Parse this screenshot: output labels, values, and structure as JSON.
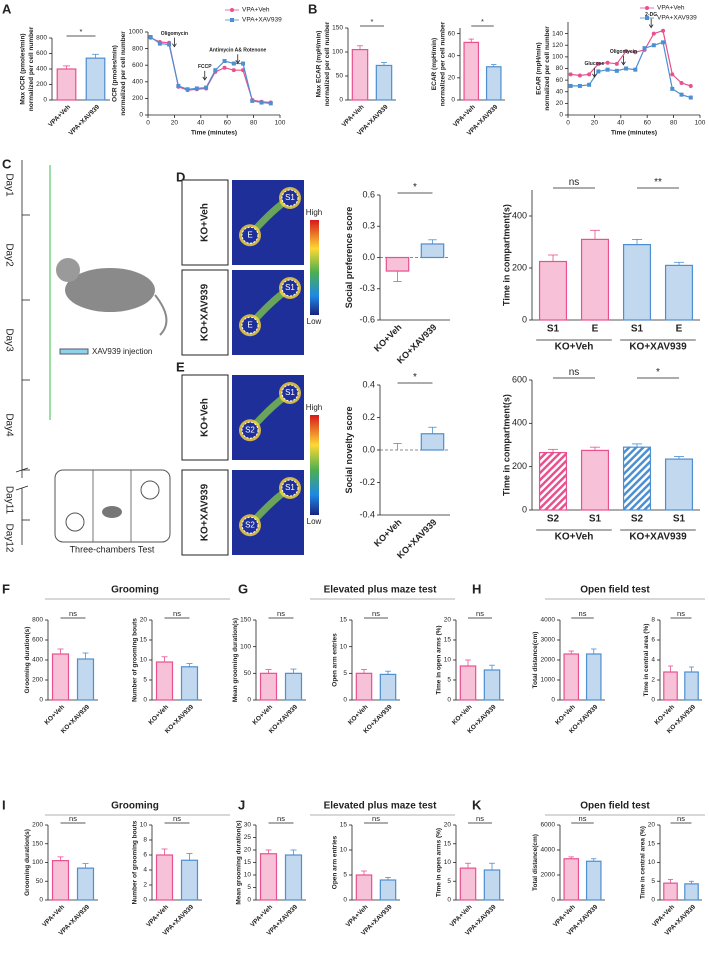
{
  "panel_labels": [
    "A",
    "B",
    "C",
    "D",
    "E",
    "F",
    "G",
    "H",
    "I",
    "J",
    "K"
  ],
  "section_titles": [
    "Grooming",
    "Elevated plus maze test",
    "Open field test",
    "Grooming",
    "Elevated plus maze test",
    "Open field test"
  ],
  "timeline": {
    "days": [
      "Day1",
      "Day2",
      "Day3",
      "Day4",
      "Day11",
      "Day12"
    ],
    "injection": "XAV939 injection",
    "test": "Three-chambers Test"
  },
  "heatmaps": [
    {
      "groups": [
        {
          "label": "KO+Veh",
          "zones": [
            "E",
            "S1"
          ]
        },
        {
          "label": "KO+XAV939",
          "zones": [
            "E",
            "S1"
          ]
        }
      ],
      "scale": [
        "High",
        "Low"
      ]
    },
    {
      "groups": [
        {
          "label": "KO+Veh",
          "zones": [
            "S2",
            "S1"
          ]
        },
        {
          "label": "KO+XAV939",
          "zones": [
            "S2",
            "S1"
          ]
        }
      ],
      "scale": [
        "High",
        "Low"
      ]
    }
  ],
  "chart_data": [
    {
      "type": "bar",
      "ylabel": [
        "Max OCR (pmoles/min)",
        "normalized per cell number"
      ],
      "categories": [
        "VPA+Veh",
        "VPA+XAV939"
      ],
      "values": [
        400,
        540
      ],
      "errors": [
        40,
        50
      ],
      "colors": [
        "#e8508f",
        "#4d8fd1"
      ],
      "ylim": [
        0,
        800
      ],
      "yticks": [
        0,
        200,
        400,
        600,
        800
      ],
      "significance": [
        "*"
      ]
    },
    {
      "type": "line",
      "ylabel": [
        "OCR (pmoles/min)",
        "normalized per cell number"
      ],
      "xlabel": "Time (minutes)",
      "x": [
        2,
        9,
        16,
        23,
        30,
        37,
        44,
        51,
        58,
        65,
        72,
        79,
        86,
        93
      ],
      "series": [
        {
          "name": "VPA+Veh",
          "color": "#e8508f",
          "values": [
            930,
            880,
            870,
            340,
            300,
            310,
            320,
            520,
            570,
            540,
            540,
            180,
            160,
            150
          ]
        },
        {
          "name": "VPA+XAV939",
          "color": "#4d8fd1",
          "values": [
            940,
            860,
            850,
            350,
            310,
            320,
            330,
            540,
            650,
            620,
            620,
            170,
            150,
            140
          ]
        }
      ],
      "xlim": [
        0,
        100
      ],
      "xticks": [
        0,
        20,
        40,
        60,
        80,
        100
      ],
      "ylim": [
        0,
        1000
      ],
      "yticks": [
        0,
        200,
        400,
        600,
        800,
        1000
      ],
      "annotations": [
        "Oligomycin",
        "FCCP",
        "Antimycin A& Rotenone"
      ]
    },
    {
      "type": "bar",
      "ylabel": [
        "Max ECAR (mpH/min)",
        "normalized per cell number"
      ],
      "categories": [
        "VPA+Veh",
        "VPA+XAV939"
      ],
      "values": [
        105,
        72
      ],
      "errors": [
        8,
        6
      ],
      "colors": [
        "#e8508f",
        "#4d8fd1"
      ],
      "ylim": [
        0,
        150
      ],
      "yticks": [
        0,
        50,
        100,
        150
      ],
      "significance": [
        "*"
      ]
    },
    {
      "type": "bar",
      "ylabel": [
        "ECAR (mpH/min)",
        "normalized per cell number"
      ],
      "categories": [
        "VPA+Veh",
        "VPA+XAV939"
      ],
      "values": [
        52,
        30
      ],
      "errors": [
        3,
        2
      ],
      "colors": [
        "#e8508f",
        "#4d8fd1"
      ],
      "ylim": [
        0,
        65
      ],
      "yticks": [
        0,
        20,
        40,
        60
      ],
      "significance": [
        "*"
      ]
    },
    {
      "type": "line",
      "ylabel": [
        "ECAR (mpH/min)",
        "normalized per cell number"
      ],
      "xlabel": "Time (minutes)",
      "x": [
        2,
        9,
        16,
        23,
        30,
        37,
        44,
        51,
        58,
        65,
        72,
        79,
        86,
        93
      ],
      "series": [
        {
          "name": "VPA+Veh",
          "color": "#e8508f",
          "values": [
            70,
            68,
            70,
            88,
            90,
            88,
            110,
            108,
            112,
            140,
            145,
            70,
            55,
            50
          ]
        },
        {
          "name": "VPA+XAV939",
          "color": "#4d8fd1",
          "values": [
            50,
            50,
            52,
            75,
            78,
            76,
            80,
            78,
            115,
            120,
            125,
            45,
            35,
            30
          ]
        }
      ],
      "xlim": [
        0,
        100
      ],
      "xticks": [
        0,
        20,
        40,
        60,
        80,
        100
      ],
      "ylim": [
        0,
        160
      ],
      "yticks": [
        0,
        20,
        40,
        60,
        80,
        100,
        120,
        140
      ],
      "annotations": [
        "Glucose",
        "Oligomycin",
        "2-DG"
      ]
    },
    {
      "type": "bar",
      "ylabel": [
        "Social preference score"
      ],
      "categories": [
        "KO+Veh",
        "KO+XAV939"
      ],
      "values": [
        -0.13,
        0.13
      ],
      "errors": [
        0.1,
        0.04
      ],
      "colors": [
        "#e8508f",
        "#4d8fd1"
      ],
      "ylim": [
        -0.6,
        0.6
      ],
      "yticks": [
        -0.6,
        -0.3,
        {
          "value": 0,
          "label": "0.0"
        },
        0.3,
        0.6
      ],
      "significance": [
        "*"
      ]
    },
    {
      "type": "bar",
      "ylabel": [
        "Time in compartment(s)"
      ],
      "categories": [
        "S1",
        "E",
        "S1",
        "E"
      ],
      "groups": [
        "KO+Veh",
        "KO+XAV939"
      ],
      "values": [
        225,
        310,
        290,
        210
      ],
      "errors": [
        25,
        35,
        20,
        12
      ],
      "colors": [
        "#e8508f",
        "#e8508f",
        "#4d8fd1",
        "#4d8fd1"
      ],
      "ylim": [
        0,
        500
      ],
      "yticks": [
        0,
        200,
        400
      ],
      "significance": [
        "ns",
        "**"
      ]
    },
    {
      "type": "bar",
      "ylabel": [
        "Social novelty score"
      ],
      "categories": [
        "KO+Veh",
        "KO+XAV939"
      ],
      "values": [
        0,
        0.1
      ],
      "errors": [
        0.04,
        0.04
      ],
      "colors": [
        "#e8508f",
        "#4d8fd1"
      ],
      "ylim": [
        -0.4,
        0.4
      ],
      "yticks": [
        -0.4,
        -0.2,
        {
          "value": 0,
          "label": "0.0"
        },
        0.2,
        0.4
      ],
      "significance": [
        "*"
      ]
    },
    {
      "type": "bar",
      "ylabel": [
        "Time in compartment(s)"
      ],
      "categories": [
        "S2",
        "S1",
        "S2",
        "S1"
      ],
      "groups": [
        "KO+Veh",
        "KO+XAV939"
      ],
      "values": [
        265,
        275,
        290,
        235
      ],
      "errors": [
        15,
        15,
        15,
        12
      ],
      "colors": [
        "#e8508f",
        "#e8508f",
        "#4d8fd1",
        "#4d8fd1"
      ],
      "hatch": [
        true,
        false,
        true,
        false
      ],
      "ylim": [
        0,
        600
      ],
      "yticks": [
        0,
        200,
        400,
        600
      ],
      "significance": [
        "ns",
        "*"
      ]
    },
    {
      "type": "bar",
      "ylabel": [
        "Grooming duration(s)"
      ],
      "categories": [
        "KO+Veh",
        "KO+XAV939"
      ],
      "values": [
        460,
        410
      ],
      "errors": [
        50,
        60
      ],
      "colors": [
        "#e8508f",
        "#4d8fd1"
      ],
      "ylim": [
        0,
        800
      ],
      "yticks": [
        0,
        200,
        400,
        600,
        800
      ],
      "significance": [
        "ns"
      ]
    },
    {
      "type": "bar",
      "ylabel": [
        "Number of grooming bouts"
      ],
      "categories": [
        "KO+Veh",
        "KO+XAV939"
      ],
      "values": [
        9.5,
        8.3
      ],
      "errors": [
        1.3,
        0.8
      ],
      "colors": [
        "#e8508f",
        "#4d8fd1"
      ],
      "ylim": [
        0,
        20
      ],
      "yticks": [
        0,
        5,
        10,
        15,
        20
      ],
      "significance": [
        "ns"
      ]
    },
    {
      "type": "bar",
      "ylabel": [
        "Mean grooming duration(s)"
      ],
      "categories": [
        "KO+Veh",
        "KO+XAV939"
      ],
      "values": [
        50,
        50
      ],
      "errors": [
        7,
        8
      ],
      "colors": [
        "#e8508f",
        "#4d8fd1"
      ],
      "ylim": [
        0,
        150
      ],
      "yticks": [
        0,
        50,
        100,
        150
      ],
      "significance": [
        "ns"
      ]
    },
    {
      "type": "bar",
      "ylabel": [
        "Open arm entries"
      ],
      "categories": [
        "KO+Veh",
        "KO+XAV939"
      ],
      "values": [
        5,
        4.8
      ],
      "errors": [
        0.7,
        0.6
      ],
      "colors": [
        "#e8508f",
        "#4d8fd1"
      ],
      "ylim": [
        0,
        15
      ],
      "yticks": [
        0,
        5,
        10,
        15
      ],
      "significance": [
        "ns"
      ]
    },
    {
      "type": "bar",
      "ylabel": [
        "Time in open arms (%)"
      ],
      "categories": [
        "KO+Veh",
        "KO+XAV939"
      ],
      "values": [
        8.5,
        7.5
      ],
      "errors": [
        1.5,
        1.2
      ],
      "colors": [
        "#e8508f",
        "#4d8fd1"
      ],
      "ylim": [
        0,
        20
      ],
      "yticks": [
        0,
        5,
        10,
        15,
        20
      ],
      "significance": [
        "ns"
      ]
    },
    {
      "type": "bar",
      "ylabel": [
        "Total distance(cm)"
      ],
      "categories": [
        "KO+Veh",
        "KO+XAV939"
      ],
      "values": [
        2300,
        2300
      ],
      "errors": [
        150,
        250
      ],
      "colors": [
        "#e8508f",
        "#4d8fd1"
      ],
      "ylim": [
        0,
        4000
      ],
      "yticks": [
        0,
        1000,
        2000,
        3000,
        4000
      ],
      "significance": [
        "ns"
      ]
    },
    {
      "type": "bar",
      "ylabel": [
        "Time in central area (%)"
      ],
      "categories": [
        "KO+Veh",
        "KO+XAV939"
      ],
      "values": [
        2.8,
        2.8
      ],
      "errors": [
        0.6,
        0.5
      ],
      "colors": [
        "#e8508f",
        "#4d8fd1"
      ],
      "ylim": [
        0,
        8
      ],
      "yticks": [
        0,
        2,
        4,
        6,
        8
      ],
      "significance": [
        "ns"
      ]
    },
    {
      "type": "bar",
      "ylabel": [
        "Grooming duration(s)"
      ],
      "categories": [
        "VPA+Veh",
        "VPA+XAV939"
      ],
      "values": [
        105,
        85
      ],
      "errors": [
        10,
        12
      ],
      "colors": [
        "#e8508f",
        "#4d8fd1"
      ],
      "ylim": [
        0,
        200
      ],
      "yticks": [
        0,
        50,
        100,
        150,
        200
      ],
      "significance": [
        "ns"
      ]
    },
    {
      "type": "bar",
      "ylabel": [
        "Number of grooming bouts"
      ],
      "categories": [
        "VPA+Veh",
        "VPA+XAV939"
      ],
      "values": [
        6,
        5.3
      ],
      "errors": [
        0.8,
        0.9
      ],
      "colors": [
        "#e8508f",
        "#4d8fd1"
      ],
      "ylim": [
        0,
        10
      ],
      "yticks": [
        0,
        2,
        4,
        6,
        8,
        10
      ],
      "significance": [
        "ns"
      ]
    },
    {
      "type": "bar",
      "ylabel": [
        "Mean grooming duration(s)"
      ],
      "categories": [
        "VPA+Veh",
        "VPA+XAV939"
      ],
      "values": [
        18.5,
        18
      ],
      "errors": [
        1.5,
        2
      ],
      "colors": [
        "#e8508f",
        "#4d8fd1"
      ],
      "ylim": [
        0,
        30
      ],
      "yticks": [
        0,
        5,
        10,
        15,
        20,
        25,
        30
      ],
      "significance": [
        "ns"
      ]
    },
    {
      "type": "bar",
      "ylabel": [
        "Open arm entries"
      ],
      "categories": [
        "VPA+Veh",
        "VPA+XAV939"
      ],
      "values": [
        5,
        4
      ],
      "errors": [
        0.8,
        0.5
      ],
      "colors": [
        "#e8508f",
        "#4d8fd1"
      ],
      "ylim": [
        0,
        15
      ],
      "yticks": [
        0,
        5,
        10,
        15
      ],
      "significance": [
        "ns"
      ]
    },
    {
      "type": "bar",
      "ylabel": [
        "Time in open arms (%)"
      ],
      "categories": [
        "VPA+Veh",
        "VPA+XAV939"
      ],
      "values": [
        8.5,
        8
      ],
      "errors": [
        1.3,
        1.8
      ],
      "colors": [
        "#e8508f",
        "#4d8fd1"
      ],
      "ylim": [
        0,
        20
      ],
      "yticks": [
        0,
        5,
        10,
        15,
        20
      ],
      "significance": [
        "ns"
      ]
    },
    {
      "type": "bar",
      "ylabel": [
        "Total distance(cm)"
      ],
      "categories": [
        "VPA+Veh",
        "VPA+XAV939"
      ],
      "values": [
        3300,
        3100
      ],
      "errors": [
        150,
        200
      ],
      "colors": [
        "#e8508f",
        "#4d8fd1"
      ],
      "ylim": [
        0,
        6000
      ],
      "yticks": [
        0,
        2000,
        4000,
        6000
      ],
      "significance": [
        "ns"
      ]
    },
    {
      "type": "bar",
      "ylabel": [
        "Time in central area (%)"
      ],
      "categories": [
        "VPA+Veh",
        "VPA+XAV939"
      ],
      "values": [
        4.5,
        4.3
      ],
      "errors": [
        1,
        0.7
      ],
      "colors": [
        "#e8508f",
        "#4d8fd1"
      ],
      "ylim": [
        0,
        20
      ],
      "yticks": [
        0,
        5,
        10,
        15,
        20
      ],
      "significance": [
        "ns"
      ]
    }
  ]
}
